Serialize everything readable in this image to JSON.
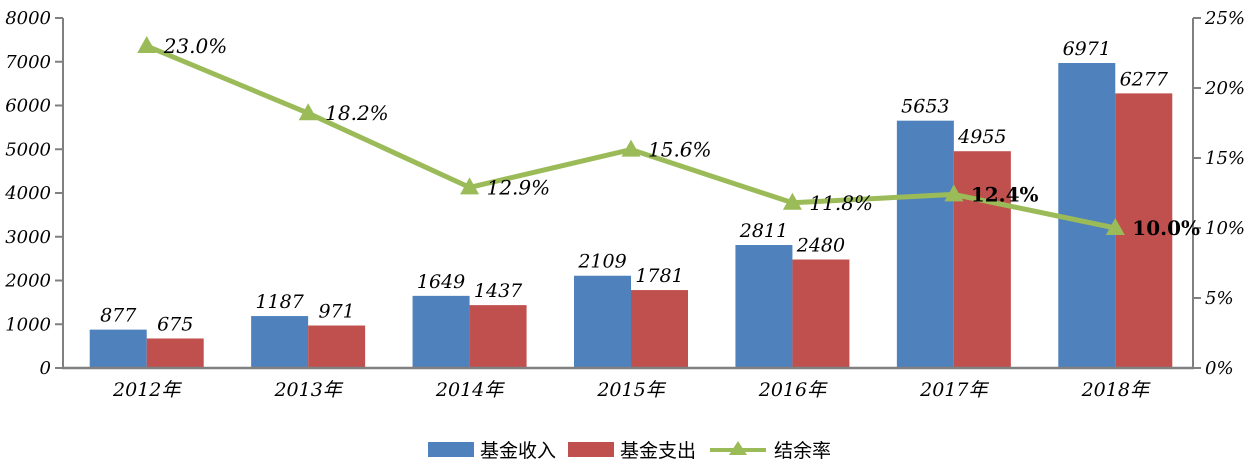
{
  "chart_data": {
    "type": "bar",
    "title": "",
    "categories": [
      "2012年",
      "2013年",
      "2014年",
      "2015年",
      "2016年",
      "2017年",
      "2018年"
    ],
    "series": [
      {
        "name": "基金收入",
        "kind": "bar",
        "color": "#4F81BD",
        "axis": "left",
        "values": [
          877,
          1187,
          1649,
          2109,
          2811,
          5653,
          6971
        ],
        "labels": [
          "877",
          "1187",
          "1649",
          "2109",
          "2811",
          "5653",
          "6971"
        ]
      },
      {
        "name": "基金支出",
        "kind": "bar",
        "color": "#C0504D",
        "axis": "left",
        "values": [
          675,
          971,
          1437,
          1781,
          2480,
          4955,
          6277
        ],
        "labels": [
          "675",
          "971",
          "1437",
          "1781",
          "2480",
          "4955",
          "6277"
        ]
      },
      {
        "name": "结余率",
        "kind": "line",
        "color": "#9BBB59",
        "axis": "right",
        "marker": "triangle-up",
        "values": [
          23.0,
          18.2,
          12.9,
          15.6,
          11.8,
          12.4,
          10.0
        ],
        "labels": [
          "23.0%",
          "18.2%",
          "12.9%",
          "15.6%",
          "11.8%",
          "12.4%",
          "10.0%"
        ],
        "label_bold": [
          false,
          false,
          false,
          false,
          false,
          true,
          true
        ]
      }
    ],
    "left_axis": {
      "min": 0,
      "max": 8000,
      "step": 1000,
      "tick_labels": [
        "0",
        "1000",
        "2000",
        "3000",
        "4000",
        "5000",
        "6000",
        "7000",
        "8000"
      ]
    },
    "right_axis": {
      "min": 0,
      "max": 25,
      "step": 5,
      "tick_labels": [
        "0%",
        "5%",
        "10%",
        "15%",
        "20%",
        "25%"
      ]
    },
    "grid": false,
    "legend_position": "bottom"
  },
  "colors": {
    "axis": "#808080",
    "text": "#000000",
    "background": "#FFFFFF"
  }
}
